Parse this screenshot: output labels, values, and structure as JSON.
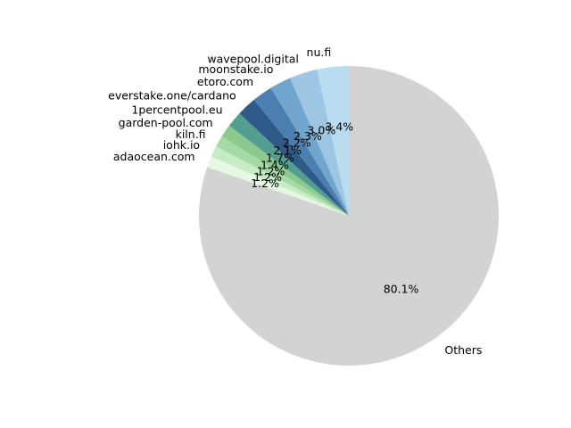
{
  "chart_data": {
    "type": "pie",
    "title": "",
    "start_angle_deg": 90,
    "direction": "counterclockwise",
    "slices": [
      {
        "label": "nu.fi",
        "value": 3.4,
        "pct_label": "3.4%",
        "color": "#b9dcf0"
      },
      {
        "label": "wavepool.digital",
        "value": 3.0,
        "pct_label": "3.0%",
        "color": "#9cc6e2"
      },
      {
        "label": "moonstake.io",
        "value": 2.3,
        "pct_label": "2.3%",
        "color": "#72a5ce"
      },
      {
        "label": "etoro.com",
        "value": 2.2,
        "pct_label": "2.2%",
        "color": "#4a7fb0"
      },
      {
        "label": "everstake.one/cardano",
        "value": 2.1,
        "pct_label": "2.1%",
        "color": "#2e5a89"
      },
      {
        "label": "1percentpool.eu",
        "value": 1.7,
        "pct_label": "1.7%",
        "color": "#529e90"
      },
      {
        "label": "garden-pool.com",
        "value": 1.4,
        "pct_label": "1.4%",
        "color": "#8cc98e"
      },
      {
        "label": "kiln.fi",
        "value": 1.2,
        "pct_label": "1.2%",
        "color": "#a5daa6"
      },
      {
        "label": "iohk.io",
        "value": 1.2,
        "pct_label": "1.2%",
        "color": "#c6ecc6"
      },
      {
        "label": "adaocean.com",
        "value": 1.2,
        "pct_label": "1.2%",
        "color": "#e6f7e4"
      },
      {
        "label": "Others",
        "value": 80.1,
        "pct_label": "80.1%",
        "color": "#d3d3d3"
      }
    ]
  }
}
